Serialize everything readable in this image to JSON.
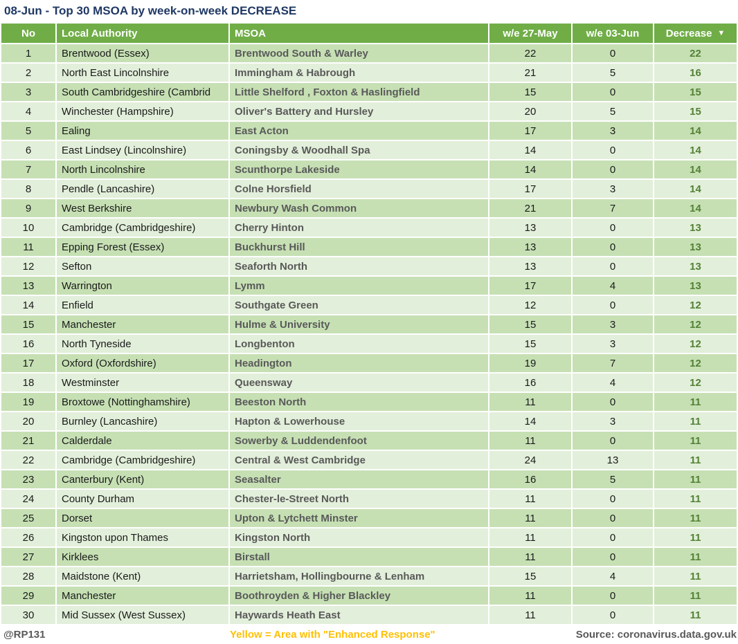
{
  "title": "08-Jun - Top 30 MSOA by week-on-week DECREASE",
  "colors": {
    "header_green": "#70AD47",
    "row_odd_green": "#C6E0B4",
    "row_even_green": "#E2EFDA",
    "decrease_value_green": "#538135",
    "msoa_text_gray": "#595959",
    "title_navy": "#1F3864",
    "footer_gray": "#595959",
    "enhanced_response_yellow": "#FFC000"
  },
  "table": {
    "columns": [
      "No",
      "Local Authority",
      "MSOA",
      "w/e 27-May",
      "w/e 03-Jun",
      "Decrease"
    ],
    "sort_indicator": "▼",
    "rows": [
      {
        "no": "1",
        "local_authority": "Brentwood (Essex)",
        "msoa": "Brentwood South & Warley",
        "we_27_may": "22",
        "we_03_jun": "0",
        "decrease": "22"
      },
      {
        "no": "2",
        "local_authority": "North East Lincolnshire",
        "msoa": "Immingham & Habrough",
        "we_27_may": "21",
        "we_03_jun": "5",
        "decrease": "16"
      },
      {
        "no": "3",
        "local_authority": "South Cambridgeshire (Cambrid",
        "msoa": "Little Shelford , Foxton & Haslingfield",
        "we_27_may": "15",
        "we_03_jun": "0",
        "decrease": "15"
      },
      {
        "no": "4",
        "local_authority": "Winchester (Hampshire)",
        "msoa": "Oliver's Battery and Hursley",
        "we_27_may": "20",
        "we_03_jun": "5",
        "decrease": "15"
      },
      {
        "no": "5",
        "local_authority": "Ealing",
        "msoa": "East Acton",
        "we_27_may": "17",
        "we_03_jun": "3",
        "decrease": "14"
      },
      {
        "no": "6",
        "local_authority": "East Lindsey (Lincolnshire)",
        "msoa": "Coningsby & Woodhall Spa",
        "we_27_may": "14",
        "we_03_jun": "0",
        "decrease": "14"
      },
      {
        "no": "7",
        "local_authority": "North Lincolnshire",
        "msoa": "Scunthorpe Lakeside",
        "we_27_may": "14",
        "we_03_jun": "0",
        "decrease": "14"
      },
      {
        "no": "8",
        "local_authority": "Pendle (Lancashire)",
        "msoa": "Colne Horsfield",
        "we_27_may": "17",
        "we_03_jun": "3",
        "decrease": "14"
      },
      {
        "no": "9",
        "local_authority": "West Berkshire",
        "msoa": "Newbury Wash Common",
        "we_27_may": "21",
        "we_03_jun": "7",
        "decrease": "14"
      },
      {
        "no": "10",
        "local_authority": "Cambridge (Cambridgeshire)",
        "msoa": "Cherry Hinton",
        "we_27_may": "13",
        "we_03_jun": "0",
        "decrease": "13"
      },
      {
        "no": "11",
        "local_authority": "Epping Forest (Essex)",
        "msoa": "Buckhurst Hill",
        "we_27_may": "13",
        "we_03_jun": "0",
        "decrease": "13"
      },
      {
        "no": "12",
        "local_authority": "Sefton",
        "msoa": "Seaforth North",
        "we_27_may": "13",
        "we_03_jun": "0",
        "decrease": "13"
      },
      {
        "no": "13",
        "local_authority": "Warrington",
        "msoa": "Lymm",
        "we_27_may": "17",
        "we_03_jun": "4",
        "decrease": "13"
      },
      {
        "no": "14",
        "local_authority": "Enfield",
        "msoa": "Southgate Green",
        "we_27_may": "12",
        "we_03_jun": "0",
        "decrease": "12"
      },
      {
        "no": "15",
        "local_authority": "Manchester",
        "msoa": "Hulme & University",
        "we_27_may": "15",
        "we_03_jun": "3",
        "decrease": "12"
      },
      {
        "no": "16",
        "local_authority": "North Tyneside",
        "msoa": "Longbenton",
        "we_27_may": "15",
        "we_03_jun": "3",
        "decrease": "12"
      },
      {
        "no": "17",
        "local_authority": "Oxford (Oxfordshire)",
        "msoa": "Headington",
        "we_27_may": "19",
        "we_03_jun": "7",
        "decrease": "12"
      },
      {
        "no": "18",
        "local_authority": "Westminster",
        "msoa": "Queensway",
        "we_27_may": "16",
        "we_03_jun": "4",
        "decrease": "12"
      },
      {
        "no": "19",
        "local_authority": "Broxtowe (Nottinghamshire)",
        "msoa": "Beeston North",
        "we_27_may": "11",
        "we_03_jun": "0",
        "decrease": "11"
      },
      {
        "no": "20",
        "local_authority": "Burnley (Lancashire)",
        "msoa": "Hapton & Lowerhouse",
        "we_27_may": "14",
        "we_03_jun": "3",
        "decrease": "11"
      },
      {
        "no": "21",
        "local_authority": "Calderdale",
        "msoa": "Sowerby & Luddendenfoot",
        "we_27_may": "11",
        "we_03_jun": "0",
        "decrease": "11"
      },
      {
        "no": "22",
        "local_authority": "Cambridge (Cambridgeshire)",
        "msoa": "Central & West Cambridge",
        "we_27_may": "24",
        "we_03_jun": "13",
        "decrease": "11"
      },
      {
        "no": "23",
        "local_authority": "Canterbury (Kent)",
        "msoa": "Seasalter",
        "we_27_may": "16",
        "we_03_jun": "5",
        "decrease": "11"
      },
      {
        "no": "24",
        "local_authority": "County Durham",
        "msoa": "Chester-le-Street North",
        "we_27_may": "11",
        "we_03_jun": "0",
        "decrease": "11"
      },
      {
        "no": "25",
        "local_authority": "Dorset",
        "msoa": "Upton & Lytchett Minster",
        "we_27_may": "11",
        "we_03_jun": "0",
        "decrease": "11"
      },
      {
        "no": "26",
        "local_authority": "Kingston upon Thames",
        "msoa": "Kingston North",
        "we_27_may": "11",
        "we_03_jun": "0",
        "decrease": "11"
      },
      {
        "no": "27",
        "local_authority": "Kirklees",
        "msoa": "Birstall",
        "we_27_may": "11",
        "we_03_jun": "0",
        "decrease": "11"
      },
      {
        "no": "28",
        "local_authority": "Maidstone (Kent)",
        "msoa": "Harrietsham, Hollingbourne & Lenham",
        "we_27_may": "15",
        "we_03_jun": "4",
        "decrease": "11"
      },
      {
        "no": "29",
        "local_authority": "Manchester",
        "msoa": "Boothroyden & Higher Blackley",
        "we_27_may": "11",
        "we_03_jun": "0",
        "decrease": "11"
      },
      {
        "no": "30",
        "local_authority": "Mid Sussex (West Sussex)",
        "msoa": "Haywards Heath East",
        "we_27_may": "11",
        "we_03_jun": "0",
        "decrease": "11"
      }
    ]
  },
  "footer": {
    "handle": "@RP131",
    "note": "Yellow = Area with \"Enhanced Response\"",
    "source": "Source: coronavirus.data.gov.uk"
  }
}
